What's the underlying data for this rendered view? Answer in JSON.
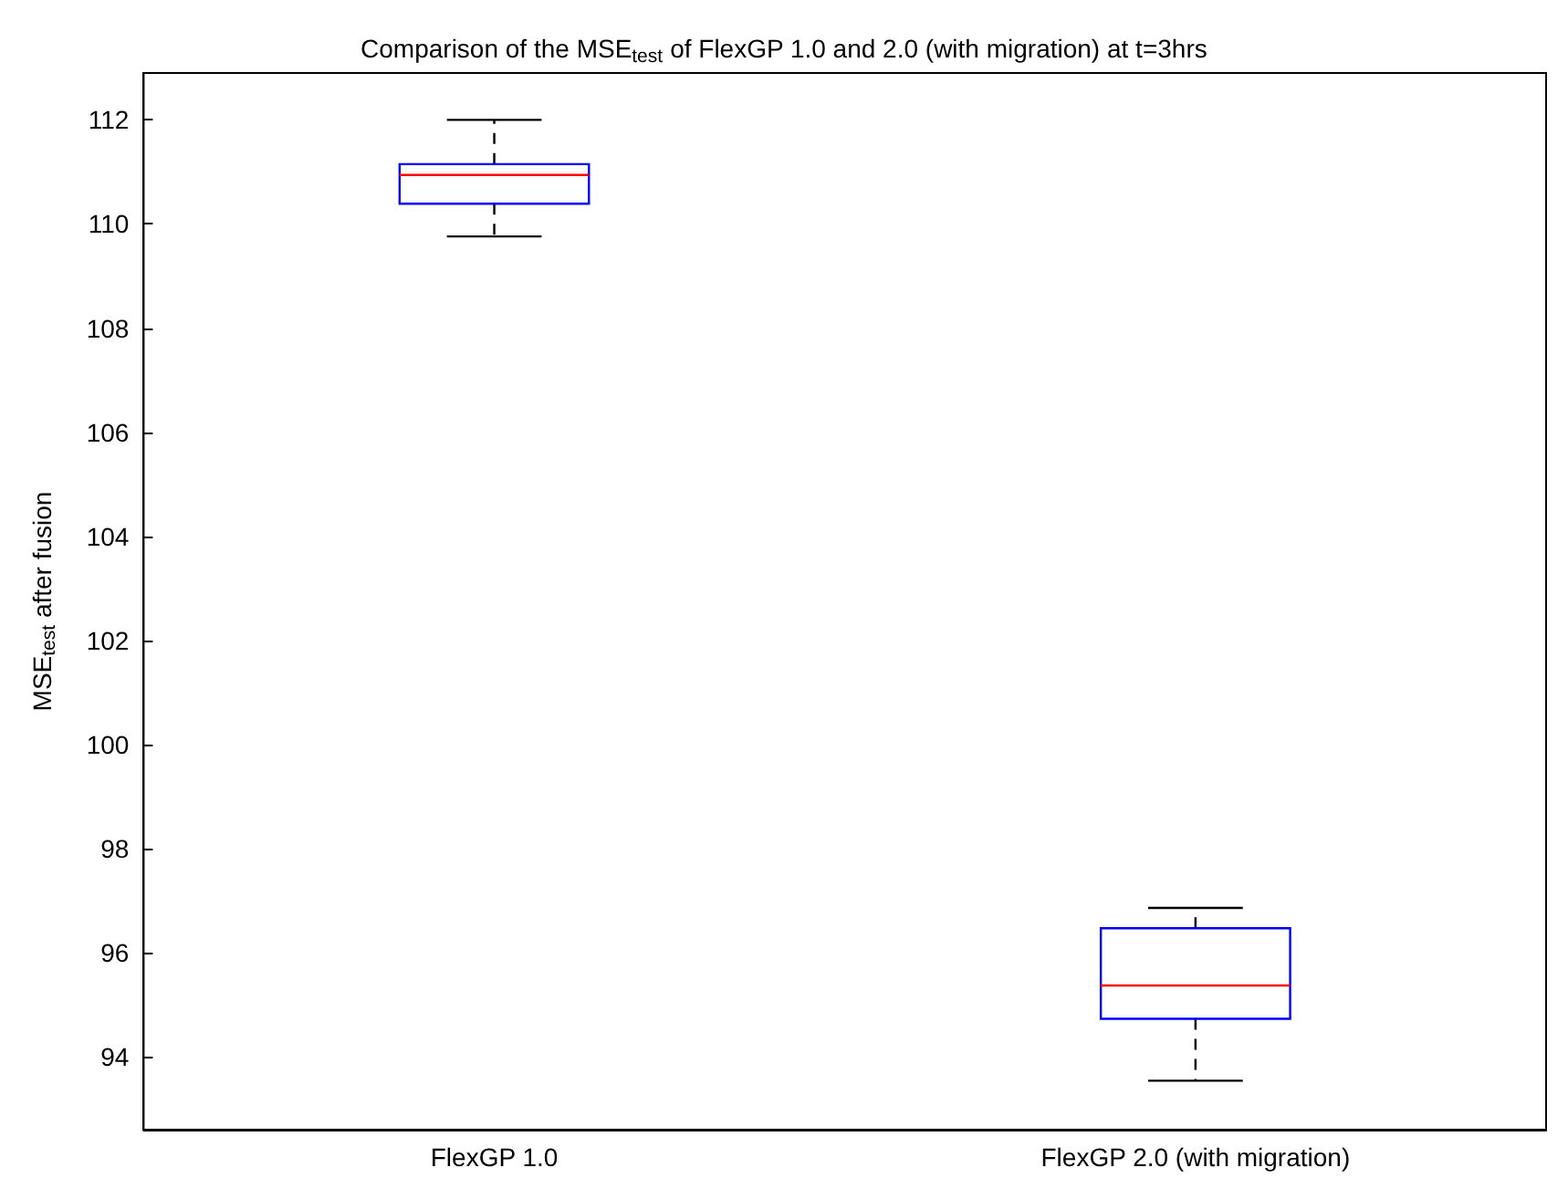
{
  "chart_data": {
    "type": "box",
    "title": "Comparison of the MSE$_{test}$ of FlexGP 1.0 and 2.0 (with migration) at t=3hrs",
    "ylabel": "MSE$_{test}$ after fusion",
    "categories": [
      "FlexGP 1.0",
      "FlexGP 2.0 (with migration)"
    ],
    "series": [
      {
        "color": "#0000ff",
        "boxes": [
          {
            "low": 109.76,
            "q1": 110.39,
            "median": 110.94,
            "q3": 111.15,
            "high": 112.0
          },
          {
            "low": 93.54,
            "q1": 94.73,
            "median": 95.37,
            "q3": 96.47,
            "high": 96.86
          }
        ]
      }
    ],
    "ylim": [
      92.6,
      112.9
    ],
    "yticks": [
      94,
      96,
      98,
      100,
      102,
      104,
      106,
      108,
      110,
      112
    ],
    "grid": false
  }
}
